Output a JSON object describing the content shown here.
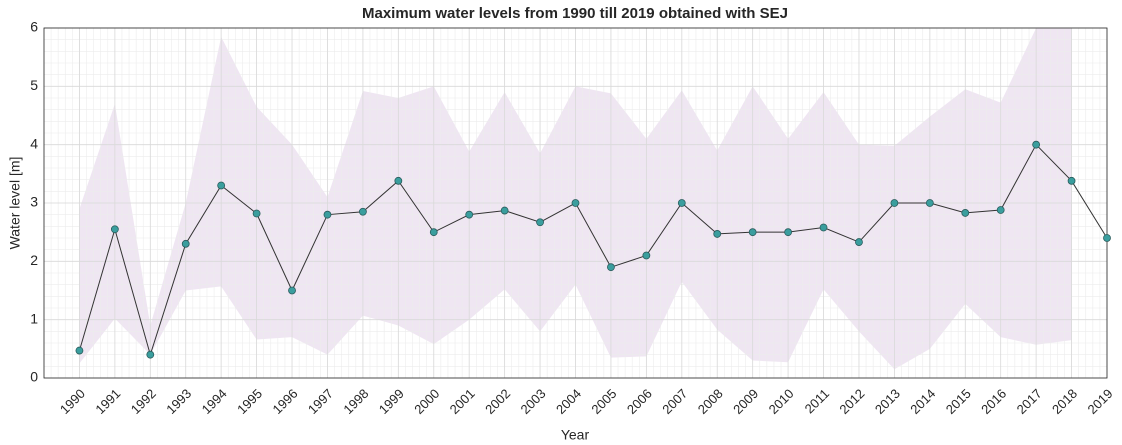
{
  "chart_data": {
    "type": "line",
    "title": "Maximum water levels from 1990 till 2019 obtained with SEJ",
    "xlabel": "Year",
    "ylabel": "Water level [m]",
    "x": [
      1990,
      1991,
      1992,
      1993,
      1994,
      1995,
      1996,
      1997,
      1998,
      1999,
      2000,
      2001,
      2002,
      2003,
      2004,
      2005,
      2006,
      2007,
      2008,
      2009,
      2010,
      2011,
      2012,
      2013,
      2014,
      2015,
      2016,
      2017,
      2018,
      2019
    ],
    "series": [
      {
        "color": "#3a9e9e",
        "line_color": "#333333",
        "values": [
          0.47,
          2.55,
          0.4,
          2.3,
          3.3,
          2.82,
          1.5,
          2.8,
          2.85,
          3.38,
          2.5,
          2.8,
          2.87,
          2.67,
          3.0,
          1.9,
          2.1,
          3.0,
          2.47,
          2.5,
          2.5,
          2.58,
          2.33,
          3.0,
          3.0,
          2.83,
          2.88,
          4.0,
          3.38,
          2.4
        ]
      }
    ],
    "band": {
      "color": "#efe6f2",
      "upper": [
        2.9,
        4.7,
        0.9,
        3.0,
        5.85,
        4.65,
        4.0,
        3.1,
        4.92,
        4.8,
        5.0,
        3.88,
        4.9,
        3.85,
        5.0,
        4.88,
        4.1,
        4.93,
        3.9,
        5.0,
        4.1,
        4.9,
        4.0,
        3.98,
        4.48,
        4.95,
        4.72,
        6.0,
        6.0,
        null
      ],
      "lower": [
        0.25,
        1.02,
        0.4,
        1.5,
        1.57,
        0.66,
        0.7,
        0.4,
        1.07,
        0.9,
        0.58,
        1.0,
        1.52,
        0.8,
        1.6,
        0.35,
        0.37,
        1.65,
        0.83,
        0.3,
        0.27,
        1.52,
        0.8,
        0.15,
        0.5,
        1.27,
        0.7,
        0.57,
        0.65,
        null
      ]
    },
    "xlim": [
      1989,
      2019
    ],
    "ylim": [
      0,
      6
    ],
    "xticks": [
      1990,
      1991,
      1992,
      1993,
      1994,
      1995,
      1996,
      1997,
      1998,
      1999,
      2000,
      2001,
      2002,
      2003,
      2004,
      2005,
      2006,
      2007,
      2008,
      2009,
      2010,
      2011,
      2012,
      2013,
      2014,
      2015,
      2016,
      2017,
      2018,
      2019
    ],
    "yticks": [
      0,
      1,
      2,
      3,
      4,
      5,
      6
    ],
    "grid": true,
    "minor_grid": true
  }
}
